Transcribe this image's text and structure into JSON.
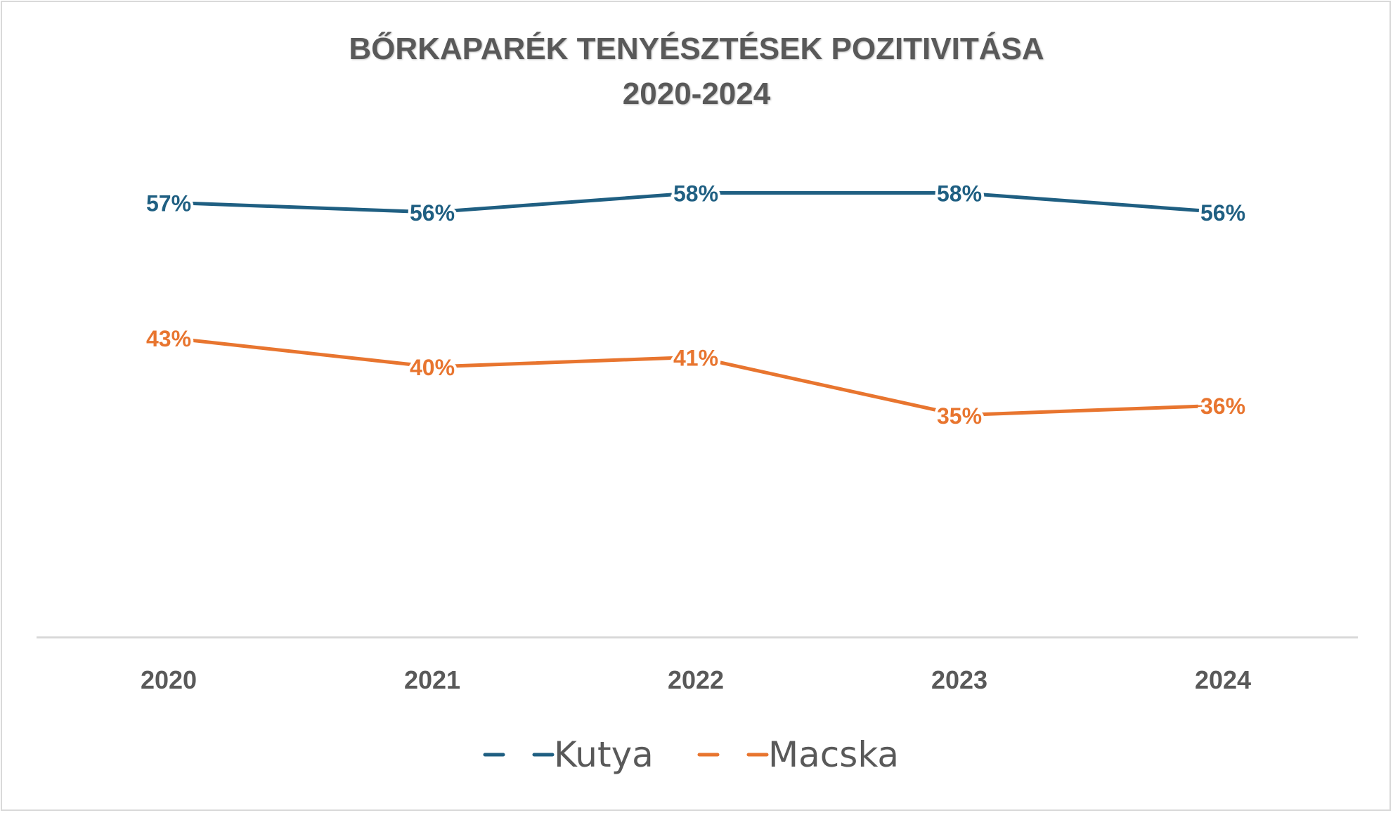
{
  "colors": {
    "kutya": "#1f5f82",
    "macska": "#e8752f",
    "axis": "#d9d9d9",
    "text": "#595959"
  },
  "chart_data": {
    "type": "line",
    "title": "BŐRKAPARÉK TENYÉSZTÉSEK POZITIVITÁSA",
    "subtitle": "2020-2024",
    "categories": [
      "2020",
      "2021",
      "2022",
      "2023",
      "2024"
    ],
    "ylim": [
      0,
      100
    ],
    "grid": false,
    "legend": "bottom",
    "series": [
      {
        "name": "Kutya",
        "values": [
          57,
          56,
          58,
          58,
          56
        ],
        "labels": [
          "57%",
          "56%",
          "58%",
          "58%",
          "56%"
        ]
      },
      {
        "name": "Macska",
        "values": [
          43,
          40,
          41,
          35,
          36
        ],
        "labels": [
          "43%",
          "40%",
          "41%",
          "35%",
          "36%"
        ]
      }
    ]
  }
}
